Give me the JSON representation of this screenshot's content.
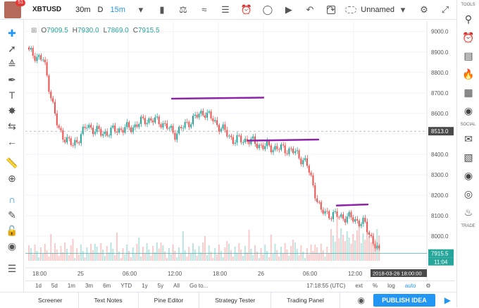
{
  "user": {
    "notifications": "51"
  },
  "toolbar": {
    "symbol": "XBTUSD",
    "interval_30m": "30m",
    "interval_d": "D",
    "interval_15m": "15m",
    "layout_name": "Unnamed"
  },
  "legend": {
    "o_label": "O",
    "o_value": "7909.5",
    "h_label": "H",
    "h_value": "7930.0",
    "l_label": "L",
    "l_value": "7869.0",
    "c_label": "C",
    "c_value": "7915.5"
  },
  "price_axis": [
    "9000.0",
    "8900.0",
    "8800.0",
    "8700.0",
    "8600.0",
    "8513.0",
    "8400.0",
    "8300.0",
    "8200.0",
    "8100.0",
    "8000.0",
    "7915.5",
    "11:04"
  ],
  "time_axis": [
    "18:00",
    "25",
    "06:00",
    "12:00",
    "18:00",
    "26",
    "06:00",
    "12:00"
  ],
  "time_cursor_label": "2018-03-26 18:00:00",
  "current_price": "7915.5",
  "countdown": "11:04",
  "range_buttons": [
    "1d",
    "5d",
    "1m",
    "3m",
    "6m",
    "YTD",
    "1y",
    "5y",
    "All",
    "Go to..."
  ],
  "clock": "17:18:55 (UTC)",
  "scale_options": [
    "ext",
    "%",
    "log",
    "auto"
  ],
  "bottom_tabs": [
    "Screener",
    "Text Notes",
    "Pine Editor",
    "Strategy Tester",
    "Trading Panel"
  ],
  "publish_label": "PUBLISH IDEA",
  "right_sections": {
    "tools": "TOOLS",
    "social": "SOCIAL",
    "trade": "TRADE"
  },
  "colors": {
    "up": "#26a69a",
    "down": "#ef5350",
    "annotation": "#8e24aa",
    "accent": "#2196f3"
  },
  "chart_data": {
    "type": "candlestick",
    "ylim": [
      7880,
      9030
    ],
    "close_trend": [
      8900,
      8860,
      8520,
      8440,
      8540,
      8500,
      8520,
      8530,
      8570,
      8560,
      8500,
      8560,
      8610,
      8540,
      8470,
      8470,
      8440,
      8430,
      8420,
      8360,
      8120,
      8100,
      8090,
      8060,
      7915
    ],
    "annotations": [
      {
        "type": "horizontal-line",
        "price": 8672
      },
      {
        "type": "horizontal-line",
        "price": 8467
      },
      {
        "type": "horizontal-line",
        "price": 8150
      }
    ]
  }
}
